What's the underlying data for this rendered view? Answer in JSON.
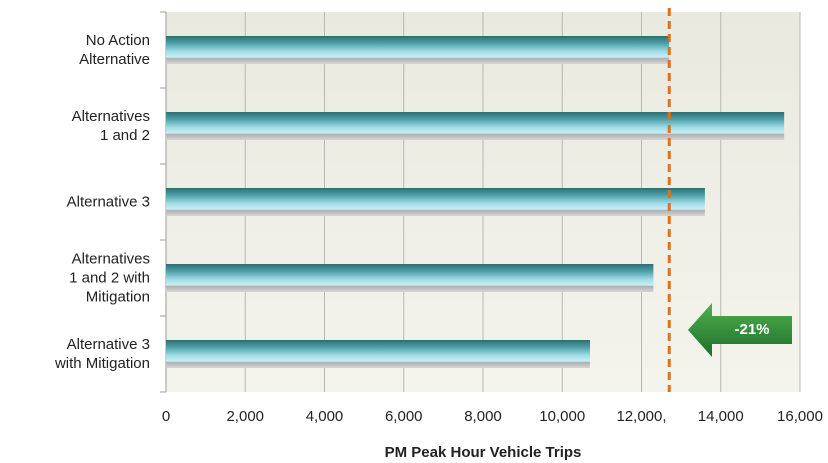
{
  "chart_data": {
    "type": "bar",
    "orientation": "horizontal",
    "categories": [
      "No Action\nAlternative",
      "Alternatives\n1 and 2",
      "Alternative 3",
      "Alternatives\n1 and 2 with\nMitigation",
      "Alternative 3\nwith Mitigation"
    ],
    "values": [
      12700,
      15600,
      13600,
      12300,
      10700
    ],
    "xlabel": "PM Peak Hour Vehicle Trips",
    "xlim": [
      0,
      16000
    ],
    "xticks": [
      0,
      {
        "value": 2000,
        "label": "2,000"
      },
      {
        "value": 4000,
        "label": "4,000"
      },
      {
        "value": 6000,
        "label": "6,000"
      },
      {
        "value": 8000,
        "label": "8,000"
      },
      {
        "value": 10000,
        "label": "10,000"
      },
      {
        "value": 12000,
        "label": "12,000,"
      },
      {
        "value": 14000,
        "label": "14,000"
      },
      {
        "value": 16000,
        "label": "16,000"
      }
    ],
    "grid": true,
    "reference_value": 12700,
    "annotation": "-21%"
  }
}
